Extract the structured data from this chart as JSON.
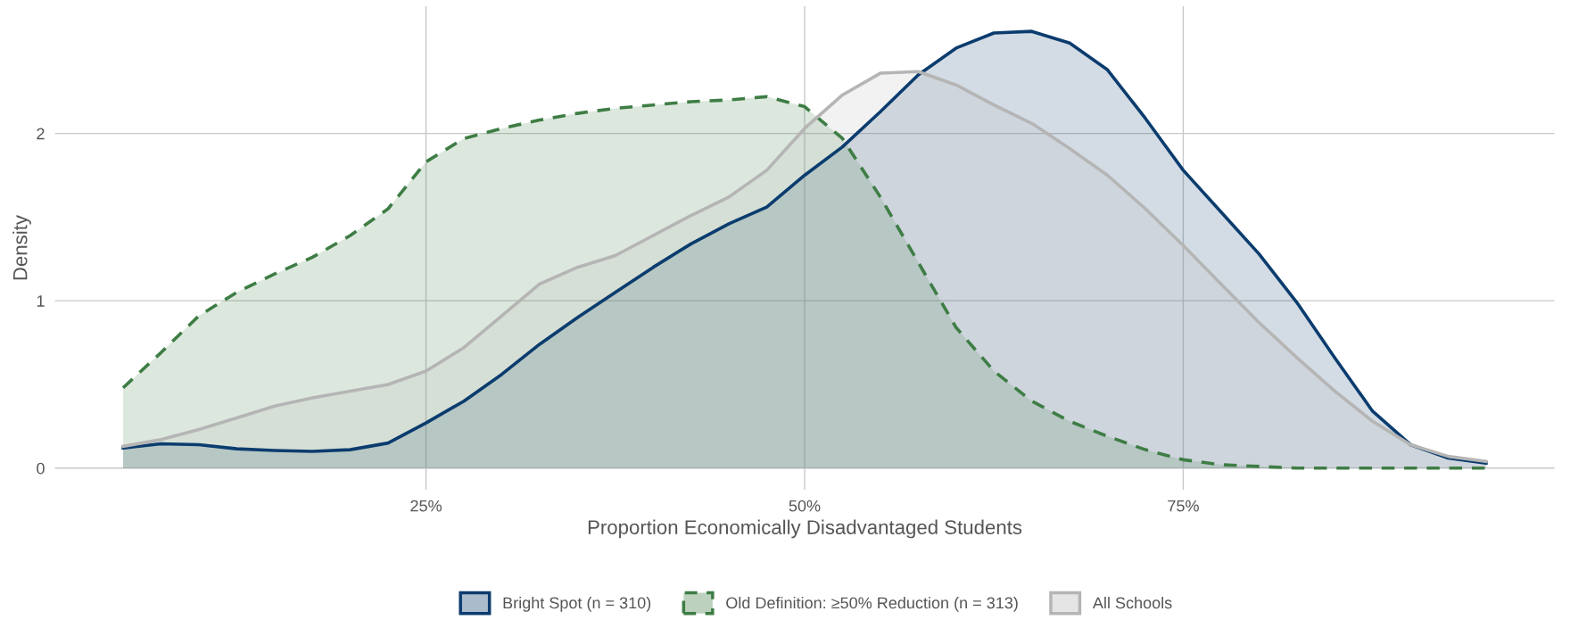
{
  "chart_data": {
    "type": "area",
    "xlabel": "Proportion Economically Disadvantaged Students",
    "ylabel": "Density",
    "x": [
      0.05,
      0.075,
      0.1,
      0.125,
      0.15,
      0.175,
      0.2,
      0.225,
      0.25,
      0.275,
      0.3,
      0.325,
      0.35,
      0.375,
      0.4,
      0.425,
      0.45,
      0.475,
      0.5,
      0.525,
      0.55,
      0.575,
      0.6,
      0.625,
      0.65,
      0.675,
      0.7,
      0.725,
      0.75,
      0.775,
      0.8,
      0.825,
      0.85,
      0.875,
      0.9,
      0.925,
      0.95
    ],
    "series": [
      {
        "name": "Bright Spot (n = 310)",
        "color": "#0b3c6e",
        "line_style": "solid",
        "values": [
          0.12,
          0.145,
          0.14,
          0.115,
          0.105,
          0.1,
          0.11,
          0.15,
          0.27,
          0.4,
          0.56,
          0.74,
          0.9,
          1.05,
          1.2,
          1.34,
          1.46,
          1.56,
          1.75,
          1.92,
          2.13,
          2.35,
          2.51,
          2.6,
          2.61,
          2.54,
          2.38,
          2.09,
          1.78,
          1.53,
          1.28,
          0.99,
          0.66,
          0.34,
          0.14,
          0.06,
          0.03
        ]
      },
      {
        "name": "Old Definition: ≥50% Reduction (n = 313)",
        "color": "#3e7d45",
        "line_style": "dashed",
        "values": [
          0.48,
          0.69,
          0.91,
          1.05,
          1.16,
          1.26,
          1.39,
          1.55,
          1.83,
          1.97,
          2.03,
          2.08,
          2.12,
          2.15,
          2.17,
          2.19,
          2.2,
          2.22,
          2.16,
          1.97,
          1.62,
          1.23,
          0.84,
          0.58,
          0.4,
          0.28,
          0.19,
          0.11,
          0.05,
          0.02,
          0.01,
          0.0,
          0.0,
          0.0,
          0.0,
          0.0,
          0.0
        ]
      },
      {
        "name": "All Schools",
        "color": "#b5b5b5",
        "line_style": "solid",
        "values": [
          0.13,
          0.17,
          0.23,
          0.3,
          0.37,
          0.42,
          0.46,
          0.5,
          0.58,
          0.72,
          0.91,
          1.1,
          1.2,
          1.27,
          1.39,
          1.51,
          1.62,
          1.78,
          2.03,
          2.23,
          2.36,
          2.37,
          2.29,
          2.17,
          2.06,
          1.91,
          1.75,
          1.55,
          1.33,
          1.1,
          0.87,
          0.66,
          0.46,
          0.28,
          0.14,
          0.07,
          0.04
        ]
      }
    ],
    "xlim": [
      0.005,
      0.995
    ],
    "ylim": [
      -0.13,
      2.76
    ],
    "xticks": [
      {
        "value": 0.25,
        "label": "25%"
      },
      {
        "value": 0.5,
        "label": "50%"
      },
      {
        "value": 0.75,
        "label": "75%"
      }
    ],
    "yticks": [
      0,
      1,
      2
    ],
    "grid": true,
    "legend": "bottom",
    "marker": "none"
  }
}
